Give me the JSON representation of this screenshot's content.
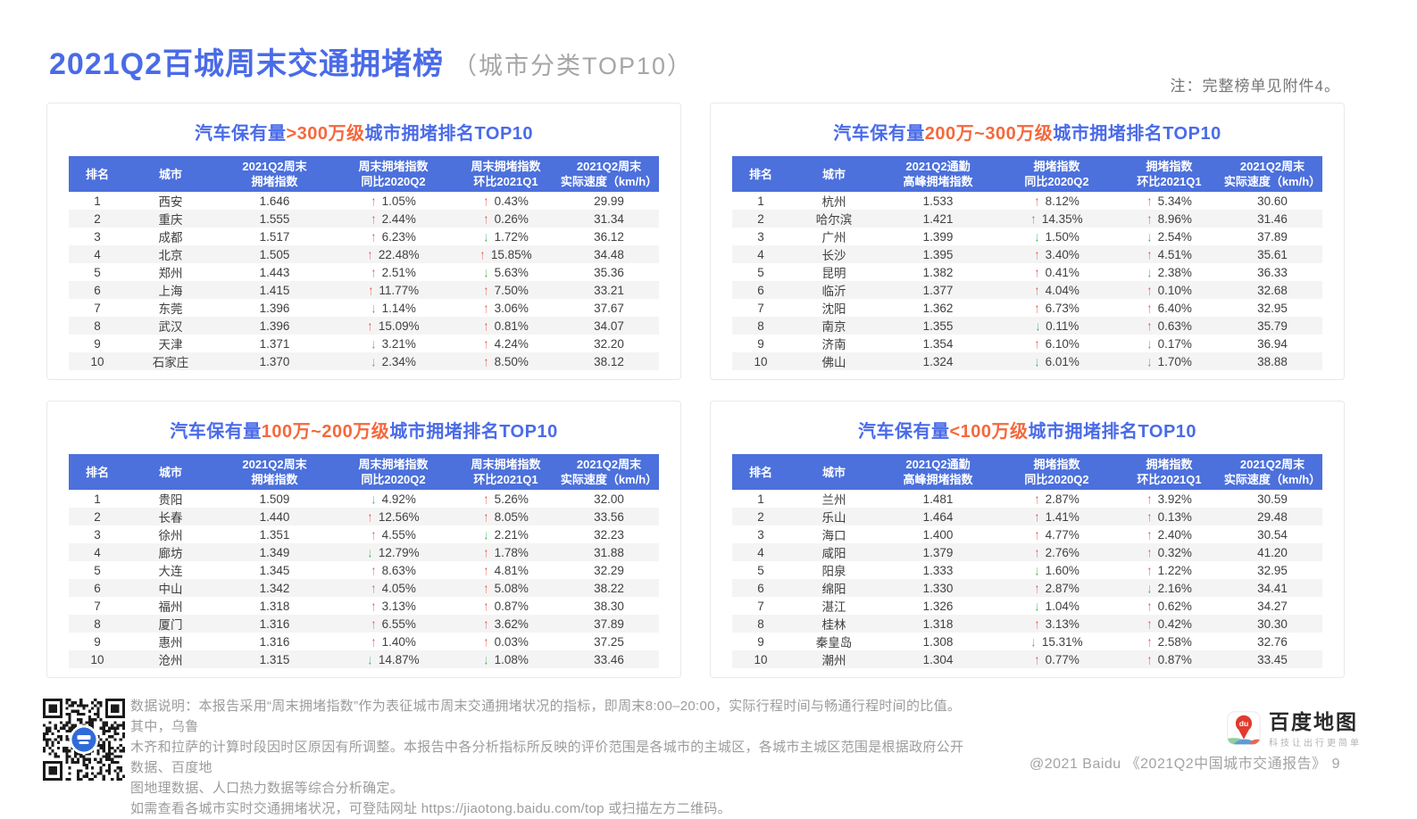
{
  "page": {
    "title": "2021Q2百城周末交通拥堵榜",
    "subtitle": "（城市分类TOP10）",
    "note": "注：完整榜单见附件4。"
  },
  "colors": {
    "accent_blue": "#4A6BE8",
    "header_blue": "#4C70DC",
    "highlight_orange": "#F5683C",
    "up_red": "#E8453C",
    "down_green": "#2BB24C",
    "stripe_gray": "#F4F4F5",
    "text_dark": "#3F3F3F",
    "muted_gray": "#9C9C9C",
    "note_gray": "#757575",
    "border_gray": "#E9E9E9"
  },
  "icons": {
    "up": "↑",
    "down": "↓"
  },
  "tables": [
    {
      "title": {
        "prefix": "汽车保有量",
        "highlight": ">300万级",
        "suffix": "城市拥堵排名TOP10"
      },
      "headers": [
        [
          "排名"
        ],
        [
          "城市"
        ],
        [
          "2021Q2周末",
          "拥堵指数"
        ],
        [
          "周末拥堵指数",
          "同比2020Q2"
        ],
        [
          "周末拥堵指数",
          "环比2021Q1"
        ],
        [
          "2021Q2周末",
          "实际速度（km/h）"
        ]
      ],
      "rows": [
        {
          "rank": "1",
          "city": "西安",
          "index": "1.646",
          "yoy_dir": "up",
          "yoy": "1.05%",
          "qoq_dir": "up",
          "qoq": "0.43%",
          "speed": "29.99"
        },
        {
          "rank": "2",
          "city": "重庆",
          "index": "1.555",
          "yoy_dir": "up",
          "yoy": "2.44%",
          "qoq_dir": "up",
          "qoq": "0.26%",
          "speed": "31.34"
        },
        {
          "rank": "3",
          "city": "成都",
          "index": "1.517",
          "yoy_dir": "up",
          "yoy": "6.23%",
          "qoq_dir": "down",
          "qoq": "1.72%",
          "speed": "36.12"
        },
        {
          "rank": "4",
          "city": "北京",
          "index": "1.505",
          "yoy_dir": "up",
          "yoy": "22.48%",
          "qoq_dir": "up",
          "qoq": "15.85%",
          "speed": "34.48"
        },
        {
          "rank": "5",
          "city": "郑州",
          "index": "1.443",
          "yoy_dir": "up",
          "yoy": "2.51%",
          "qoq_dir": "down",
          "qoq": "5.63%",
          "speed": "35.36"
        },
        {
          "rank": "6",
          "city": "上海",
          "index": "1.415",
          "yoy_dir": "up",
          "yoy": "11.77%",
          "qoq_dir": "up",
          "qoq": "7.50%",
          "speed": "33.21"
        },
        {
          "rank": "7",
          "city": "东莞",
          "index": "1.396",
          "yoy_dir": "down",
          "yoy": "1.14%",
          "qoq_dir": "up",
          "qoq": "3.06%",
          "speed": "37.67"
        },
        {
          "rank": "8",
          "city": "武汉",
          "index": "1.396",
          "yoy_dir": "up",
          "yoy": "15.09%",
          "qoq_dir": "up",
          "qoq": "0.81%",
          "speed": "34.07"
        },
        {
          "rank": "9",
          "city": "天津",
          "index": "1.371",
          "yoy_dir": "down",
          "yoy": "3.21%",
          "qoq_dir": "up",
          "qoq": "4.24%",
          "speed": "32.20"
        },
        {
          "rank": "10",
          "city": "石家庄",
          "index": "1.370",
          "yoy_dir": "down",
          "yoy": "2.34%",
          "qoq_dir": "up",
          "qoq": "8.50%",
          "speed": "38.12"
        }
      ]
    },
    {
      "title": {
        "prefix": "汽车保有量",
        "highlight": "200万~300万级",
        "suffix": "城市拥堵排名TOP10"
      },
      "headers": [
        [
          "排名"
        ],
        [
          "城市"
        ],
        [
          "2021Q2通勤",
          "高峰拥堵指数"
        ],
        [
          "拥堵指数",
          "同比2020Q2"
        ],
        [
          "拥堵指数",
          "环比2021Q1"
        ],
        [
          "2021Q2周末",
          "实际速度（km/h）"
        ]
      ],
      "rows": [
        {
          "rank": "1",
          "city": "杭州",
          "index": "1.533",
          "yoy_dir": "up",
          "yoy": "8.12%",
          "qoq_dir": "up",
          "qoq": "5.34%",
          "speed": "30.60"
        },
        {
          "rank": "2",
          "city": "哈尔滨",
          "index": "1.421",
          "yoy_dir": "up",
          "yoy": "14.35%",
          "qoq_dir": "up",
          "qoq": "8.96%",
          "speed": "31.46"
        },
        {
          "rank": "3",
          "city": "广州",
          "index": "1.399",
          "yoy_dir": "down",
          "yoy": "1.50%",
          "qoq_dir": "down",
          "qoq": "2.54%",
          "speed": "37.89"
        },
        {
          "rank": "4",
          "city": "长沙",
          "index": "1.395",
          "yoy_dir": "up",
          "yoy": "3.40%",
          "qoq_dir": "up",
          "qoq": "4.51%",
          "speed": "35.61"
        },
        {
          "rank": "5",
          "city": "昆明",
          "index": "1.382",
          "yoy_dir": "up",
          "yoy": "0.41%",
          "qoq_dir": "down",
          "qoq": "2.38%",
          "speed": "36.33"
        },
        {
          "rank": "6",
          "city": "临沂",
          "index": "1.377",
          "yoy_dir": "up",
          "yoy": "4.04%",
          "qoq_dir": "up",
          "qoq": "0.10%",
          "speed": "32.68"
        },
        {
          "rank": "7",
          "city": "沈阳",
          "index": "1.362",
          "yoy_dir": "up",
          "yoy": "6.73%",
          "qoq_dir": "up",
          "qoq": "6.40%",
          "speed": "32.95"
        },
        {
          "rank": "8",
          "city": "南京",
          "index": "1.355",
          "yoy_dir": "down",
          "yoy": "0.11%",
          "qoq_dir": "up",
          "qoq": "0.63%",
          "speed": "35.79"
        },
        {
          "rank": "9",
          "city": "济南",
          "index": "1.354",
          "yoy_dir": "up",
          "yoy": "6.10%",
          "qoq_dir": "down",
          "qoq": "0.17%",
          "speed": "36.94"
        },
        {
          "rank": "10",
          "city": "佛山",
          "index": "1.324",
          "yoy_dir": "down",
          "yoy": "6.01%",
          "qoq_dir": "down",
          "qoq": "1.70%",
          "speed": "38.88"
        }
      ]
    },
    {
      "title": {
        "prefix": "汽车保有量",
        "highlight": "100万~200万级",
        "suffix": "城市拥堵排名TOP10"
      },
      "headers": [
        [
          "排名"
        ],
        [
          "城市"
        ],
        [
          "2021Q2周末",
          "拥堵指数"
        ],
        [
          "周末拥堵指数",
          "同比2020Q2"
        ],
        [
          "周末拥堵指数",
          "环比2021Q1"
        ],
        [
          "2021Q2周末",
          "实际速度（km/h）"
        ]
      ],
      "rows": [
        {
          "rank": "1",
          "city": "贵阳",
          "index": "1.509",
          "yoy_dir": "down",
          "yoy": "4.92%",
          "qoq_dir": "up",
          "qoq": "5.26%",
          "speed": "32.00"
        },
        {
          "rank": "2",
          "city": "长春",
          "index": "1.440",
          "yoy_dir": "up",
          "yoy": "12.56%",
          "qoq_dir": "up",
          "qoq": "8.05%",
          "speed": "33.56"
        },
        {
          "rank": "3",
          "city": "徐州",
          "index": "1.351",
          "yoy_dir": "up",
          "yoy": "4.55%",
          "qoq_dir": "down",
          "qoq": "2.21%",
          "speed": "32.23"
        },
        {
          "rank": "4",
          "city": "廊坊",
          "index": "1.349",
          "yoy_dir": "down",
          "yoy": "12.79%",
          "qoq_dir": "up",
          "qoq": "1.78%",
          "speed": "31.88"
        },
        {
          "rank": "5",
          "city": "大连",
          "index": "1.345",
          "yoy_dir": "up",
          "yoy": "8.63%",
          "qoq_dir": "up",
          "qoq": "4.81%",
          "speed": "32.29"
        },
        {
          "rank": "6",
          "city": "中山",
          "index": "1.342",
          "yoy_dir": "up",
          "yoy": "4.05%",
          "qoq_dir": "up",
          "qoq": "5.08%",
          "speed": "38.22"
        },
        {
          "rank": "7",
          "city": "福州",
          "index": "1.318",
          "yoy_dir": "up",
          "yoy": "3.13%",
          "qoq_dir": "up",
          "qoq": "0.87%",
          "speed": "38.30"
        },
        {
          "rank": "8",
          "city": "厦门",
          "index": "1.316",
          "yoy_dir": "up",
          "yoy": "6.55%",
          "qoq_dir": "up",
          "qoq": "3.62%",
          "speed": "37.89"
        },
        {
          "rank": "9",
          "city": "惠州",
          "index": "1.316",
          "yoy_dir": "up",
          "yoy": "1.40%",
          "qoq_dir": "up",
          "qoq": "0.03%",
          "speed": "37.25"
        },
        {
          "rank": "10",
          "city": "沧州",
          "index": "1.315",
          "yoy_dir": "down",
          "yoy": "14.87%",
          "qoq_dir": "down",
          "qoq": "1.08%",
          "speed": "33.46"
        }
      ]
    },
    {
      "title": {
        "prefix": "汽车保有量",
        "highlight": "<100万级",
        "suffix": "城市拥堵排名TOP10"
      },
      "headers": [
        [
          "排名"
        ],
        [
          "城市"
        ],
        [
          "2021Q2通勤",
          "高峰拥堵指数"
        ],
        [
          "拥堵指数",
          "同比2020Q2"
        ],
        [
          "拥堵指数",
          "环比2021Q1"
        ],
        [
          "2021Q2周末",
          "实际速度（km/h）"
        ]
      ],
      "rows": [
        {
          "rank": "1",
          "city": "兰州",
          "index": "1.481",
          "yoy_dir": "up",
          "yoy": "2.87%",
          "qoq_dir": "up",
          "qoq": "3.92%",
          "speed": "30.59"
        },
        {
          "rank": "2",
          "city": "乐山",
          "index": "1.464",
          "yoy_dir": "up",
          "yoy": "1.41%",
          "qoq_dir": "up",
          "qoq": "0.13%",
          "speed": "29.48"
        },
        {
          "rank": "3",
          "city": "海口",
          "index": "1.400",
          "yoy_dir": "up",
          "yoy": "4.77%",
          "qoq_dir": "up",
          "qoq": "2.40%",
          "speed": "30.54"
        },
        {
          "rank": "4",
          "city": "咸阳",
          "index": "1.379",
          "yoy_dir": "up",
          "yoy": "2.76%",
          "qoq_dir": "up",
          "qoq": "0.32%",
          "speed": "41.20"
        },
        {
          "rank": "5",
          "city": "阳泉",
          "index": "1.333",
          "yoy_dir": "down",
          "yoy": "1.60%",
          "qoq_dir": "up",
          "qoq": "1.22%",
          "speed": "32.95"
        },
        {
          "rank": "6",
          "city": "绵阳",
          "index": "1.330",
          "yoy_dir": "up",
          "yoy": "2.87%",
          "qoq_dir": "down",
          "qoq": "2.16%",
          "speed": "34.41"
        },
        {
          "rank": "7",
          "city": "湛江",
          "index": "1.326",
          "yoy_dir": "down",
          "yoy": "1.04%",
          "qoq_dir": "up",
          "qoq": "0.62%",
          "speed": "34.27"
        },
        {
          "rank": "8",
          "city": "桂林",
          "index": "1.318",
          "yoy_dir": "up",
          "yoy": "3.13%",
          "qoq_dir": "up",
          "qoq": "0.42%",
          "speed": "30.30"
        },
        {
          "rank": "9",
          "city": "秦皇岛",
          "index": "1.308",
          "yoy_dir": "down",
          "yoy": "15.31%",
          "qoq_dir": "up",
          "qoq": "2.58%",
          "speed": "32.76"
        },
        {
          "rank": "10",
          "city": "潮州",
          "index": "1.304",
          "yoy_dir": "up",
          "yoy": "0.77%",
          "qoq_dir": "up",
          "qoq": "0.87%",
          "speed": "33.45"
        }
      ]
    }
  ],
  "footer": {
    "lines": [
      "数据说明：本报告采用“周末拥堵指数”作为表征城市周末交通拥堵状况的指标，即周末8:00–20:00，实际行程时间与畅通行程时间的比值。其中，乌鲁",
      "木齐和拉萨的计算时段因时区原因有所调整。本报告中各分析指标所反映的评价范围是各城市的主城区，各城市主城区范围是根据政府公开数据、百度地",
      "图地理数据、人口热力数据等综合分析确定。",
      "如需查看各城市实时交通拥堵状况，可登陆网址 https://jiaotong.baidu.com/top 或扫描左方二维码。"
    ]
  },
  "branding": {
    "logo_mark": "du",
    "logo_text": "百度地图",
    "logo_tagline": "科技让出行更简单",
    "copyright": "@2021 Baidu 《2021Q2中国城市交通报告》",
    "page_number": "9"
  }
}
